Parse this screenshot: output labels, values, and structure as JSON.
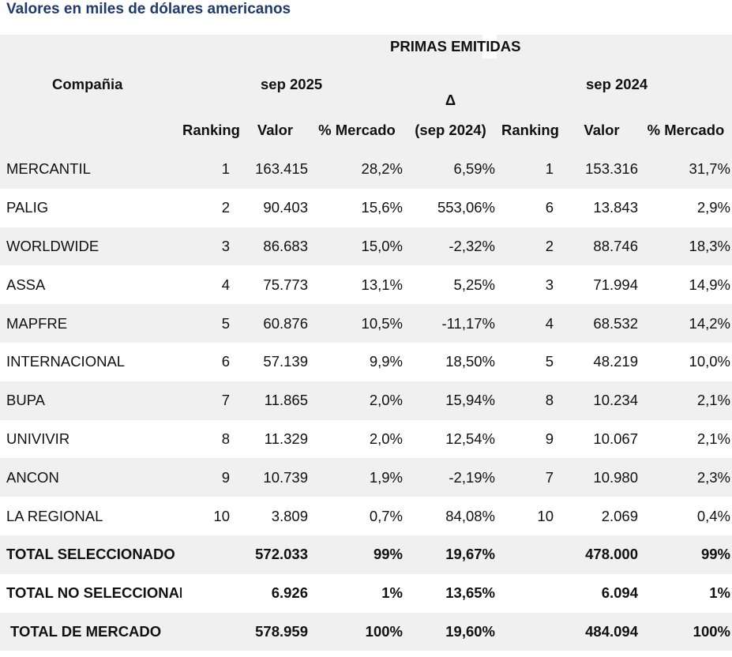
{
  "subtitle": "Valores en miles de dólares americanos",
  "header": {
    "group_title": "PRIMAS EMITIDAS",
    "company_label": "Compañia",
    "period_current": "sep 2025",
    "delta_symbol": "Δ",
    "delta_label": "(sep 2024)",
    "period_previous": "sep 2024",
    "col_ranking": "Ranking",
    "col_valor": "Valor",
    "col_mercado": "% Mercado"
  },
  "rows": [
    {
      "company": "MERCANTIL",
      "rank_cur": "1",
      "valor_cur": "163.415",
      "pct_cur": "28,2%",
      "delta": "6,59%",
      "rank_prev": "1",
      "valor_prev": "153.316",
      "pct_prev": "31,7%"
    },
    {
      "company": "PALIG",
      "rank_cur": "2",
      "valor_cur": "90.403",
      "pct_cur": "15,6%",
      "delta": "553,06%",
      "rank_prev": "6",
      "valor_prev": "13.843",
      "pct_prev": "2,9%"
    },
    {
      "company": "WORLDWIDE",
      "rank_cur": "3",
      "valor_cur": "86.683",
      "pct_cur": "15,0%",
      "delta": "-2,32%",
      "rank_prev": "2",
      "valor_prev": "88.746",
      "pct_prev": "18,3%"
    },
    {
      "company": "ASSA",
      "rank_cur": "4",
      "valor_cur": "75.773",
      "pct_cur": "13,1%",
      "delta": "5,25%",
      "rank_prev": "3",
      "valor_prev": "71.994",
      "pct_prev": "14,9%"
    },
    {
      "company": "MAPFRE",
      "rank_cur": "5",
      "valor_cur": "60.876",
      "pct_cur": "10,5%",
      "delta": "-11,17%",
      "rank_prev": "4",
      "valor_prev": "68.532",
      "pct_prev": "14,2%"
    },
    {
      "company": "INTERNACIONAL",
      "rank_cur": "6",
      "valor_cur": "57.139",
      "pct_cur": "9,9%",
      "delta": "18,50%",
      "rank_prev": "5",
      "valor_prev": "48.219",
      "pct_prev": "10,0%"
    },
    {
      "company": "BUPA",
      "rank_cur": "7",
      "valor_cur": "11.865",
      "pct_cur": "2,0%",
      "delta": "15,94%",
      "rank_prev": "8",
      "valor_prev": "10.234",
      "pct_prev": "2,1%"
    },
    {
      "company": "UNIVIVIR",
      "rank_cur": "8",
      "valor_cur": "11.329",
      "pct_cur": "2,0%",
      "delta": "12,54%",
      "rank_prev": "9",
      "valor_prev": "10.067",
      "pct_prev": "2,1%"
    },
    {
      "company": "ANCON",
      "rank_cur": "9",
      "valor_cur": "10.739",
      "pct_cur": "1,9%",
      "delta": "-2,19%",
      "rank_prev": "7",
      "valor_prev": "10.980",
      "pct_prev": "2,3%"
    },
    {
      "company": "LA REGIONAL",
      "rank_cur": "10",
      "valor_cur": "3.809",
      "pct_cur": "0,7%",
      "delta": "84,08%",
      "rank_prev": "10",
      "valor_prev": "2.069",
      "pct_prev": "0,4%"
    }
  ],
  "totals": [
    {
      "label": "TOTAL SELECCIONADO",
      "valor_cur": "572.033",
      "pct_cur": "99%",
      "delta": "19,67%",
      "valor_prev": "478.000",
      "pct_prev": "99%"
    },
    {
      "label": "TOTAL NO SELECCIONADO",
      "valor_cur": "6.926",
      "pct_cur": "1%",
      "delta": "13,65%",
      "valor_prev": "6.094",
      "pct_prev": "1%"
    },
    {
      "label": "TOTAL DE MERCADO",
      "valor_cur": "578.959",
      "pct_cur": "100%",
      "delta": "19,60%",
      "valor_prev": "484.094",
      "pct_prev": "100%"
    }
  ]
}
